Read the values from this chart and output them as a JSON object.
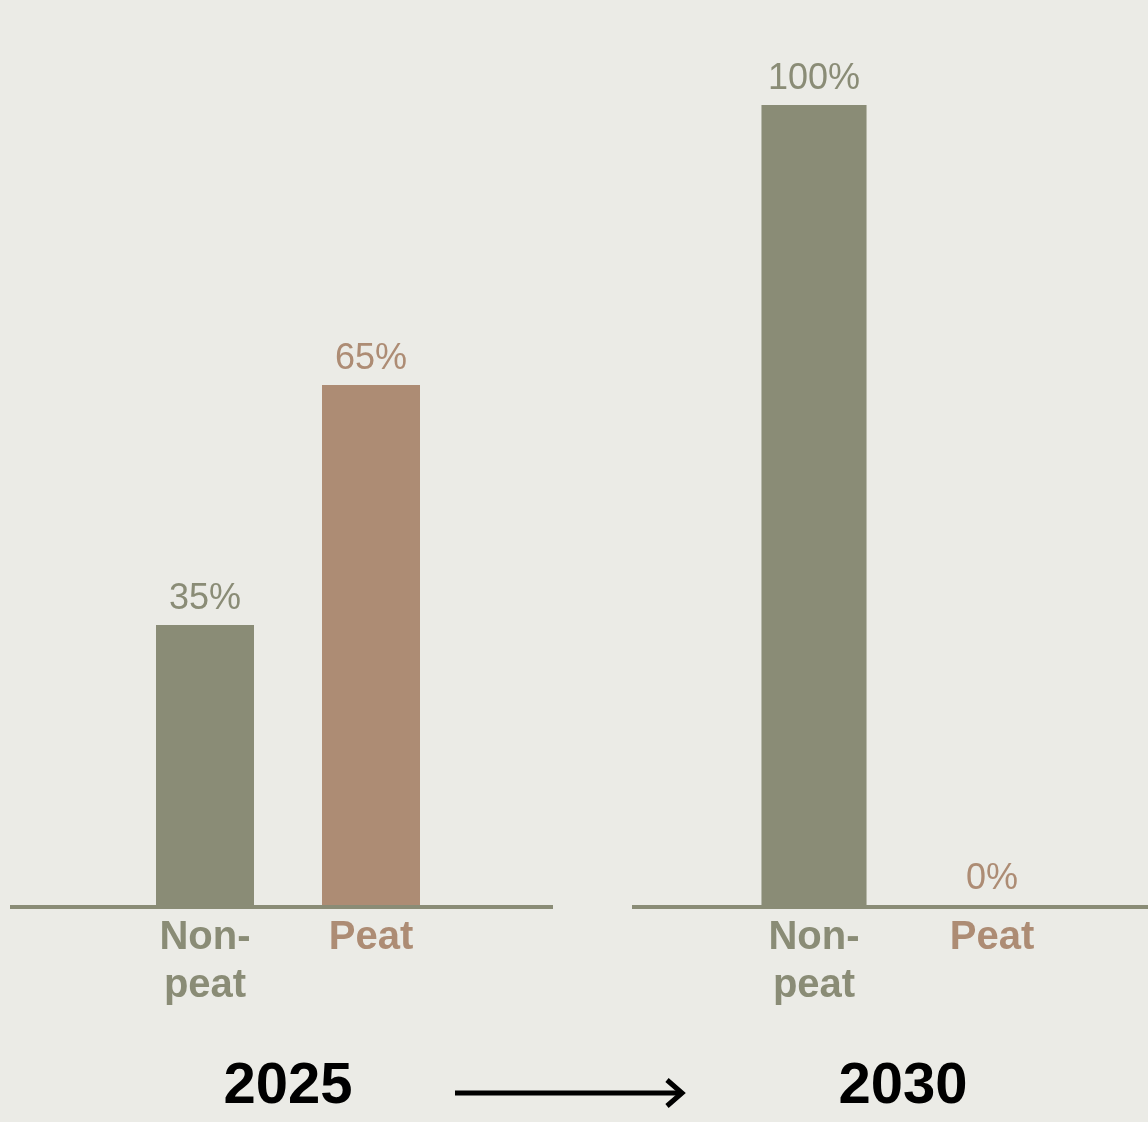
{
  "chart_data": [
    {
      "type": "bar",
      "xlabel": "2025",
      "categories": [
        "Non-peat",
        "Peat"
      ],
      "values": [
        35,
        65
      ],
      "colors": [
        "#8a8c76",
        "#ad8c74"
      ],
      "value_labels": [
        "35%",
        "65%"
      ]
    },
    {
      "type": "bar",
      "xlabel": "2030",
      "categories": [
        "Non-peat",
        "Peat"
      ],
      "values": [
        100,
        0
      ],
      "colors": [
        "#8a8c76",
        "#ad8c74"
      ],
      "value_labels": [
        "100%",
        "0%"
      ]
    }
  ]
}
